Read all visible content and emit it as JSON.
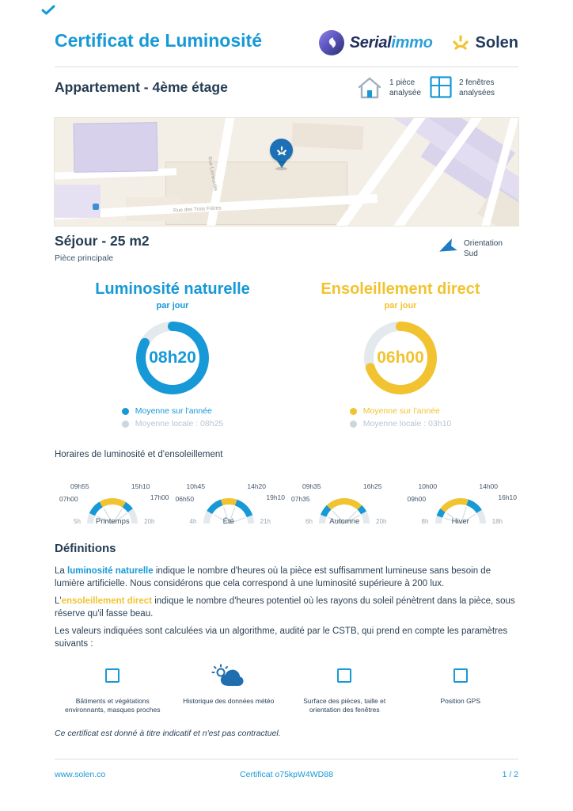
{
  "theme": {
    "blue": "#1699d6",
    "yellow": "#f2c330",
    "navy": "#243c52",
    "gauge_gray": "#e3e9ed",
    "pin_blue": "#1d70b5"
  },
  "header": {
    "title": "Certificat de Luminosité",
    "serial_brand": "Serial",
    "immo_brand": "immo",
    "solen_brand": "Solen"
  },
  "property": {
    "title": "Appartement - 4ème étage",
    "stat_rooms_line1": "1 pièce",
    "stat_rooms_line2": "analysée",
    "stat_windows_line1": "2 fenêtres",
    "stat_windows_line2": "analysées"
  },
  "map": {
    "street_label_1": "Rue Lavieuville",
    "street_label_2": "Rue des Trois Frères"
  },
  "room": {
    "title": "Séjour - 25 m2",
    "subtitle": "Pièce principale",
    "orientation_label": "Orientation",
    "orientation_value": "Sud"
  },
  "gauges": {
    "left": {
      "title": "Luminosité naturelle",
      "subtitle": "par jour",
      "value": "08h20",
      "percent": 83,
      "color": "#1699d6",
      "legend_avg": "Moyenne sur l'année",
      "legend_local": "Moyenne locale : 08h25"
    },
    "right": {
      "title": "Ensoleillement direct",
      "subtitle": "par jour",
      "value": "06h00",
      "percent": 70,
      "color": "#f2c330",
      "legend_avg": "Moyenne sur l'année",
      "legend_local": "Moyenne locale : 03h10"
    }
  },
  "schedule": {
    "title": "Horaires de luminosité et d'ensoleillement",
    "seasons": [
      {
        "name": "Printemps",
        "scale_min": 5,
        "scale_max": 20,
        "scale_min_label": "5h",
        "scale_max_label": "20h",
        "light_start": 7.0,
        "light_end": 17.0,
        "sun_start": 9.917,
        "sun_end": 15.167,
        "light_start_label": "07h00",
        "light_end_label": "17h00",
        "sun_start_label": "09h55",
        "sun_end_label": "15h10"
      },
      {
        "name": "Été",
        "scale_min": 4,
        "scale_max": 21,
        "scale_min_label": "4h",
        "scale_max_label": "21h",
        "light_start": 6.833,
        "light_end": 19.167,
        "sun_start": 10.75,
        "sun_end": 14.333,
        "light_start_label": "06h50",
        "light_end_label": "19h10",
        "sun_start_label": "10h45",
        "sun_end_label": "14h20"
      },
      {
        "name": "Automne",
        "scale_min": 6,
        "scale_max": 20,
        "scale_min_label": "6h",
        "scale_max_label": "20h",
        "light_start": 7.583,
        "light_end": 17.75,
        "sun_start": 9.583,
        "sun_end": 16.417,
        "light_start_label": "07h35",
        "light_end_label": "",
        "sun_start_label": "09h35",
        "sun_end_label": "16h25"
      },
      {
        "name": "Hiver",
        "scale_min": 8,
        "scale_max": 18,
        "scale_min_label": "8h",
        "scale_max_label": "18h",
        "light_start": 9.0,
        "light_end": 16.167,
        "sun_start": 10.0,
        "sun_end": 14.0,
        "light_start_label": "09h00",
        "light_end_label": "16h10",
        "sun_start_label": "10h00",
        "sun_end_label": "14h00"
      }
    ]
  },
  "definitions": {
    "heading": "Définitions",
    "p1": {
      "pre": "La ",
      "term": "luminosité naturelle",
      "rest": " indique le nombre d'heures où la pièce est suffisamment lumineuse sans besoin de lumière artificielle. Nous considérons que cela correspond à une luminosité supérieure à 200 lux."
    },
    "p2": {
      "pre": "L'",
      "term": "ensoleillement direct",
      "rest": " indique le nombre d'heures potentiel où les rayons du soleil pénètrent dans la pièce, sous réserve qu'il fasse beau."
    },
    "p3": "Les valeurs indiquées sont calculées via un algorithme, audité par le CSTB, qui prend en compte les paramètres suivants :"
  },
  "parameters": {
    "items": [
      {
        "icon": "buildings-icon",
        "label": "Bâtiments et végétations environnants, masques proches"
      },
      {
        "icon": "weather-icon",
        "label": "Historique des données météo"
      },
      {
        "icon": "rooms-icon",
        "label": "Surface des pièces, taille et orientation des fenêtres"
      },
      {
        "icon": "gps-icon",
        "label": "Position GPS"
      }
    ]
  },
  "disclaimer": "Ce certificat est donné à titre indicatif et n'est pas contractuel.",
  "footer": {
    "website": "www.solen.co",
    "certificate": "Certificat o75kpW4WD88",
    "page": "1 / 2"
  }
}
